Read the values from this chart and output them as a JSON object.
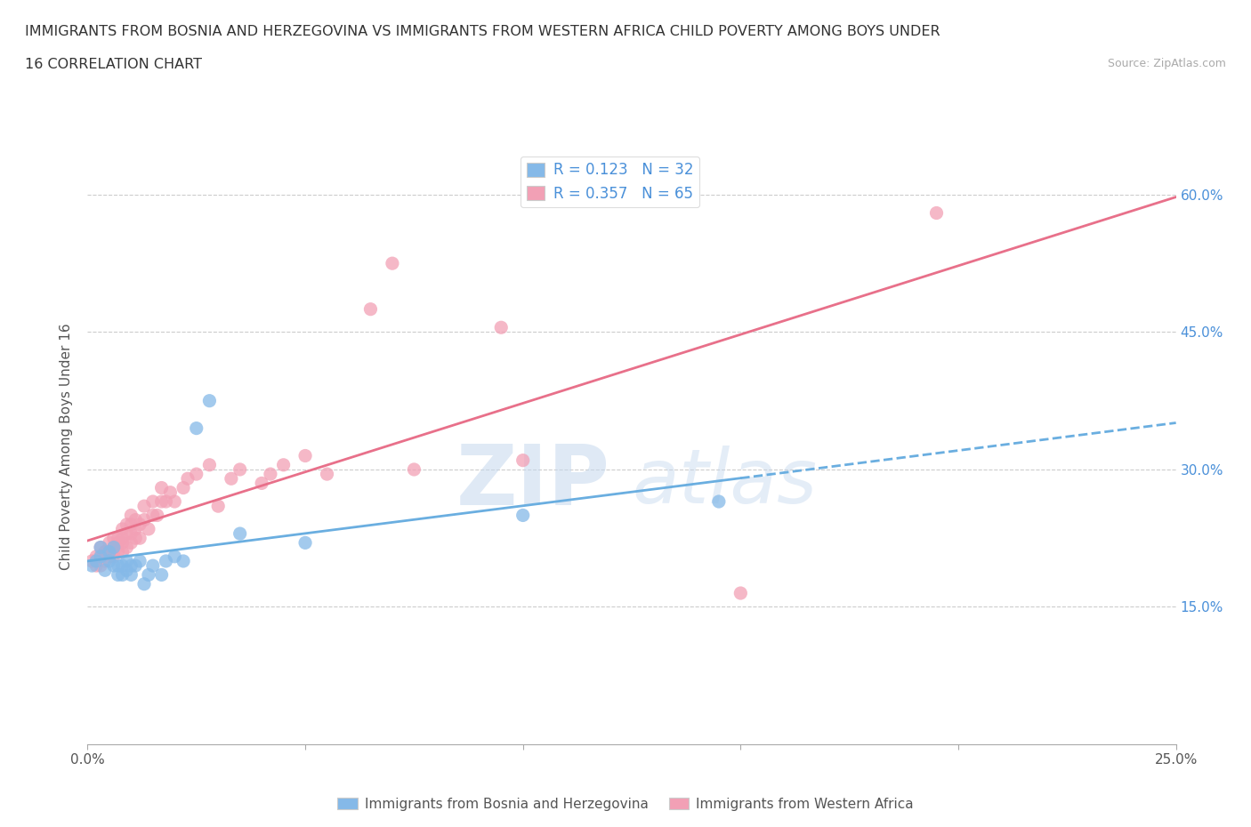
{
  "title_line1": "IMMIGRANTS FROM BOSNIA AND HERZEGOVINA VS IMMIGRANTS FROM WESTERN AFRICA CHILD POVERTY AMONG BOYS UNDER",
  "title_line2": "16 CORRELATION CHART",
  "source": "Source: ZipAtlas.com",
  "ylabel": "Child Poverty Among Boys Under 16",
  "xlim": [
    0.0,
    0.25
  ],
  "ylim": [
    0.0,
    0.65
  ],
  "xtick_vals": [
    0.0,
    0.05,
    0.1,
    0.15,
    0.2,
    0.25
  ],
  "xtick_labels": [
    "0.0%",
    "",
    "",
    "",
    "",
    "25.0%"
  ],
  "ytick_values": [
    0.15,
    0.3,
    0.45,
    0.6
  ],
  "ytick_labels": [
    "15.0%",
    "30.0%",
    "45.0%",
    "60.0%"
  ],
  "color_bosnia": "#85b9e8",
  "color_western_africa": "#f2a0b5",
  "color_line_bosnia": "#6aaee0",
  "color_line_wa": "#e8708a",
  "R_bosnia": 0.123,
  "N_bosnia": 32,
  "R_western_africa": 0.357,
  "N_western_africa": 65,
  "legend_label_bosnia": "Immigrants from Bosnia and Herzegovina",
  "legend_label_western_africa": "Immigrants from Western Africa",
  "bosnia_x": [
    0.001,
    0.002,
    0.003,
    0.003,
    0.004,
    0.005,
    0.005,
    0.006,
    0.006,
    0.007,
    0.007,
    0.008,
    0.008,
    0.009,
    0.009,
    0.01,
    0.01,
    0.011,
    0.012,
    0.013,
    0.014,
    0.015,
    0.017,
    0.018,
    0.02,
    0.022,
    0.025,
    0.028,
    0.035,
    0.05,
    0.1,
    0.145
  ],
  "bosnia_y": [
    0.195,
    0.2,
    0.205,
    0.215,
    0.19,
    0.2,
    0.21,
    0.195,
    0.215,
    0.185,
    0.195,
    0.185,
    0.195,
    0.19,
    0.2,
    0.185,
    0.195,
    0.195,
    0.2,
    0.175,
    0.185,
    0.195,
    0.185,
    0.2,
    0.205,
    0.2,
    0.345,
    0.375,
    0.23,
    0.22,
    0.25,
    0.265
  ],
  "western_africa_x": [
    0.001,
    0.002,
    0.002,
    0.003,
    0.003,
    0.003,
    0.004,
    0.004,
    0.004,
    0.005,
    0.005,
    0.005,
    0.006,
    0.006,
    0.006,
    0.006,
    0.007,
    0.007,
    0.007,
    0.008,
    0.008,
    0.008,
    0.008,
    0.009,
    0.009,
    0.009,
    0.01,
    0.01,
    0.01,
    0.01,
    0.011,
    0.011,
    0.011,
    0.012,
    0.012,
    0.013,
    0.013,
    0.014,
    0.015,
    0.015,
    0.016,
    0.017,
    0.017,
    0.018,
    0.019,
    0.02,
    0.022,
    0.023,
    0.025,
    0.028,
    0.03,
    0.033,
    0.035,
    0.04,
    0.042,
    0.045,
    0.05,
    0.055,
    0.065,
    0.07,
    0.075,
    0.095,
    0.1,
    0.15,
    0.195
  ],
  "western_africa_y": [
    0.2,
    0.195,
    0.205,
    0.195,
    0.205,
    0.215,
    0.21,
    0.2,
    0.21,
    0.205,
    0.21,
    0.22,
    0.21,
    0.205,
    0.215,
    0.225,
    0.21,
    0.22,
    0.225,
    0.21,
    0.22,
    0.225,
    0.235,
    0.215,
    0.23,
    0.24,
    0.22,
    0.23,
    0.24,
    0.25,
    0.225,
    0.235,
    0.245,
    0.225,
    0.24,
    0.245,
    0.26,
    0.235,
    0.25,
    0.265,
    0.25,
    0.265,
    0.28,
    0.265,
    0.275,
    0.265,
    0.28,
    0.29,
    0.295,
    0.305,
    0.26,
    0.29,
    0.3,
    0.285,
    0.295,
    0.305,
    0.315,
    0.295,
    0.475,
    0.525,
    0.3,
    0.455,
    0.31,
    0.165,
    0.58
  ]
}
